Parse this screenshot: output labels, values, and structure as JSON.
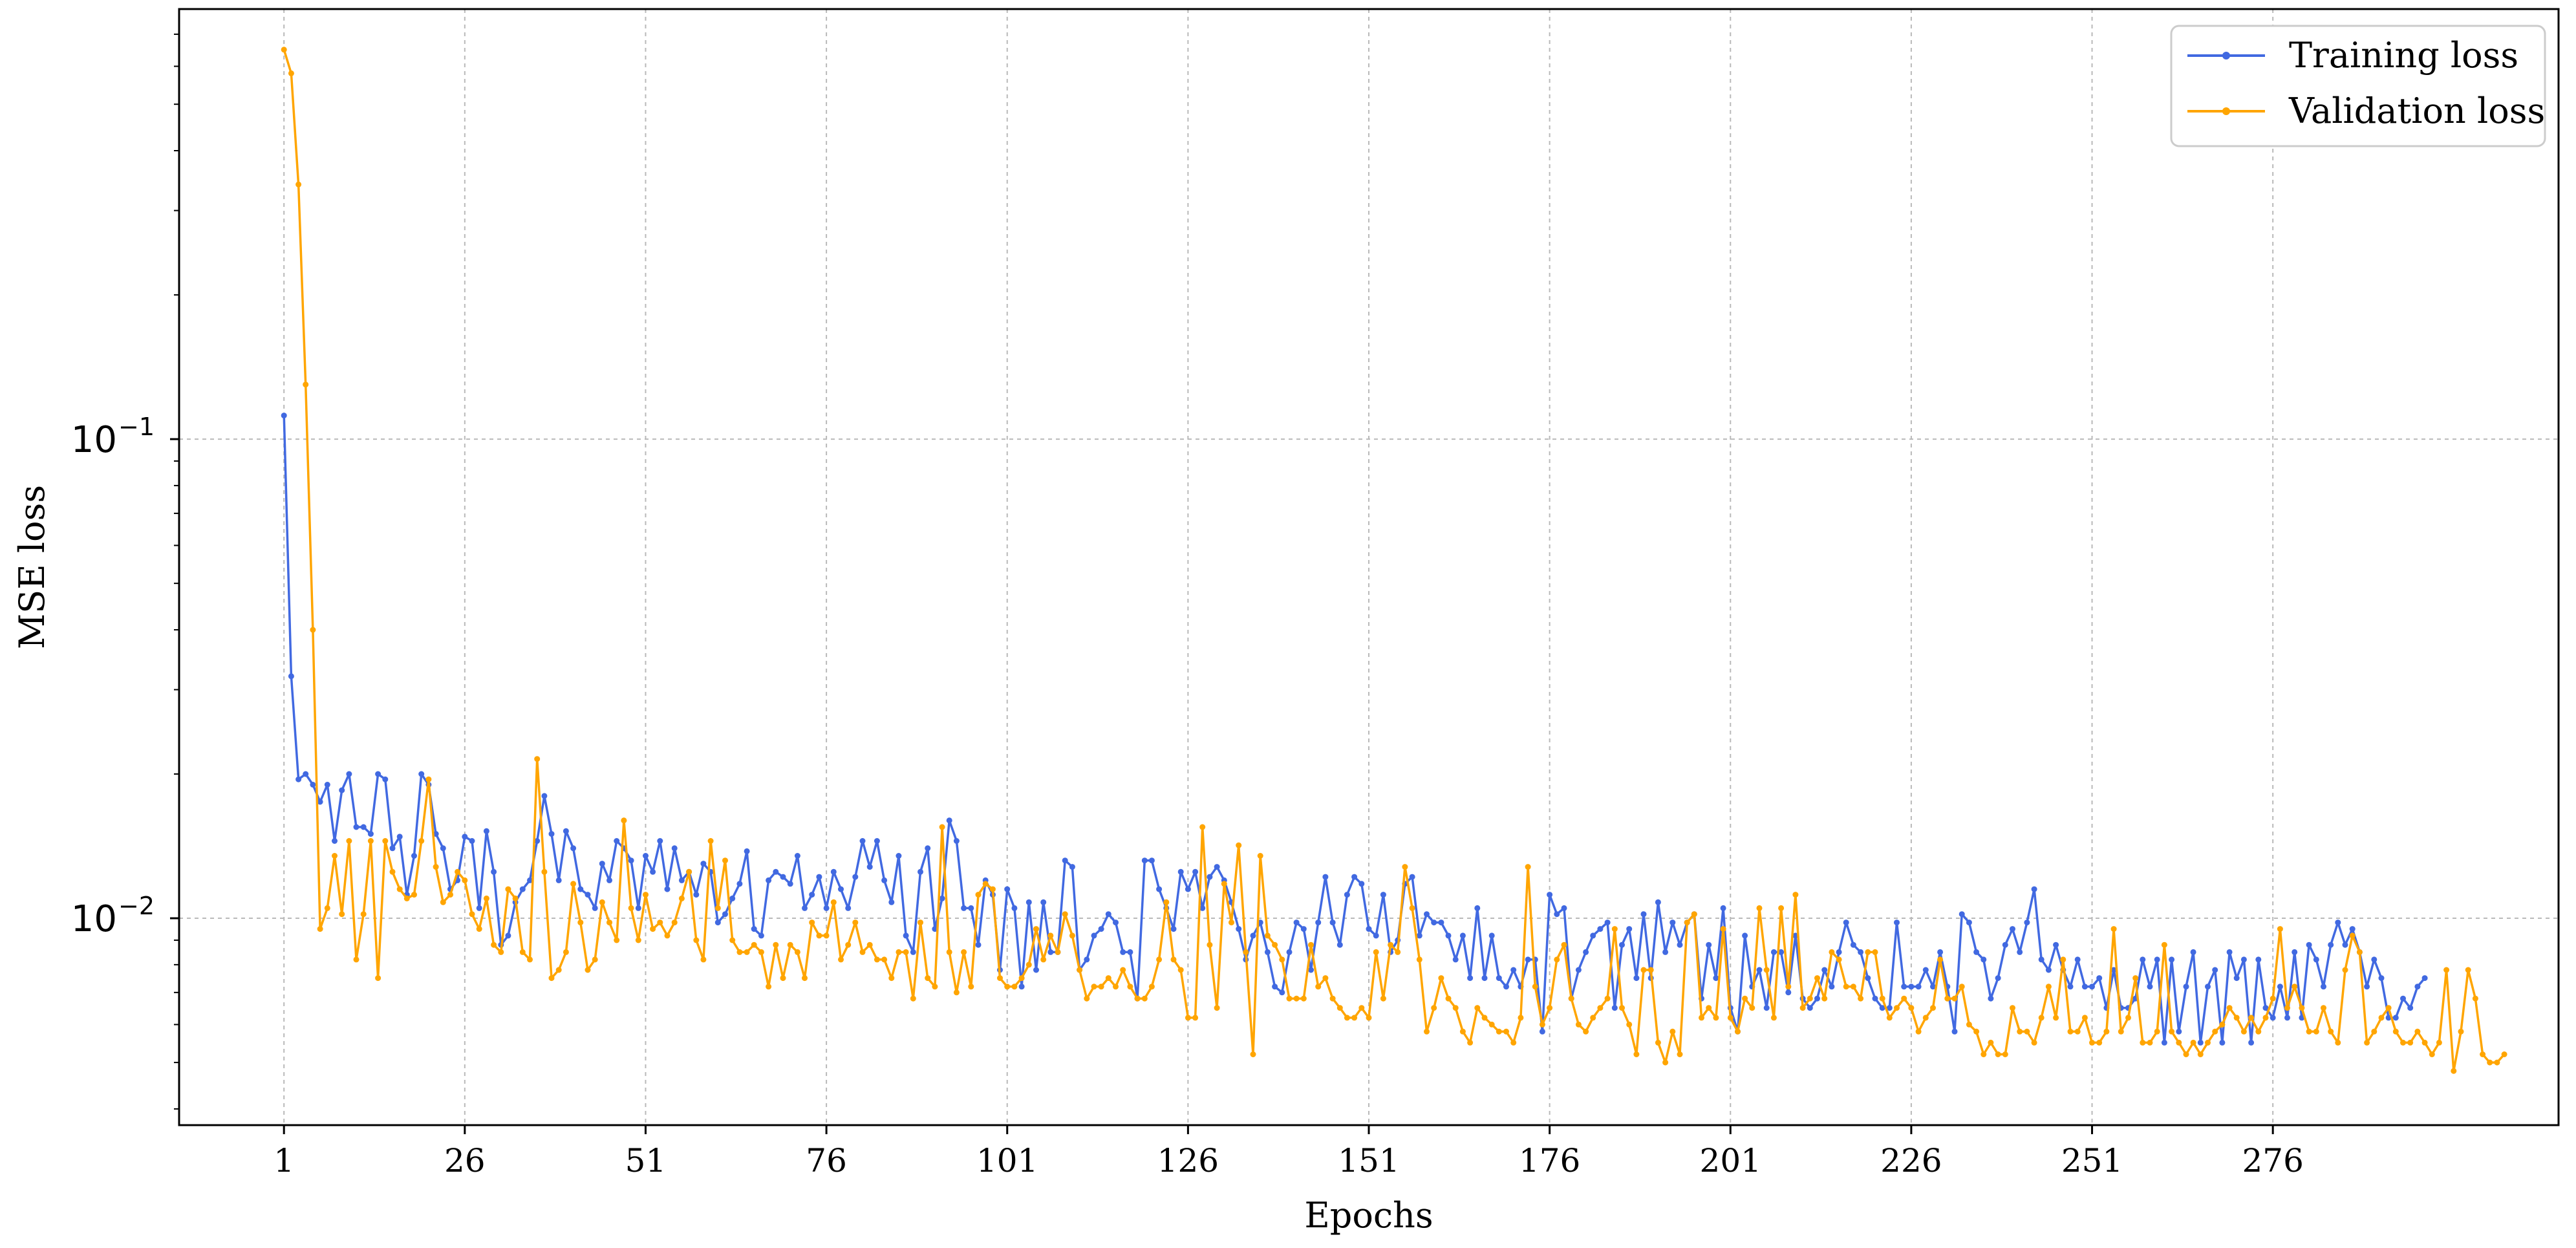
{
  "chart_data": {
    "type": "line",
    "title": "",
    "xlabel": "Epochs",
    "ylabel": "MSE loss",
    "yscale": "log",
    "xlim": [
      -13.5,
      315.5
    ],
    "ylim": [
      0.0037,
      0.79
    ],
    "xticks": [
      1,
      26,
      51,
      76,
      101,
      126,
      151,
      176,
      201,
      226,
      251,
      276
    ],
    "xtick_labels": [
      "1",
      "26",
      "51",
      "76",
      "101",
      "126",
      "151",
      "176",
      "201",
      "226",
      "251",
      "276"
    ],
    "yticks": [
      0.1,
      0.01
    ],
    "ytick_labels": [
      {
        "base": "10",
        "exp": "−1"
      },
      {
        "base": "10",
        "exp": "−2"
      }
    ],
    "grid": true,
    "legend_position": "top-right",
    "x_start": 1,
    "series": [
      {
        "name": "Training loss",
        "color": "#4169e1",
        "values": [
          0.112,
          0.032,
          0.0195,
          0.02,
          0.019,
          0.0175,
          0.019,
          0.0145,
          0.0185,
          0.02,
          0.0155,
          0.0155,
          0.015,
          0.02,
          0.0195,
          0.014,
          0.0148,
          0.0112,
          0.0135,
          0.02,
          0.019,
          0.015,
          0.014,
          0.0115,
          0.012,
          0.0148,
          0.0145,
          0.0105,
          0.0152,
          0.0125,
          0.0088,
          0.0092,
          0.0108,
          0.0115,
          0.012,
          0.0145,
          0.018,
          0.015,
          0.012,
          0.0152,
          0.014,
          0.0115,
          0.0112,
          0.0105,
          0.013,
          0.012,
          0.0145,
          0.014,
          0.0132,
          0.0105,
          0.0135,
          0.0125,
          0.0145,
          0.0115,
          0.014,
          0.012,
          0.0125,
          0.0112,
          0.013,
          0.0125,
          0.0098,
          0.0102,
          0.011,
          0.0118,
          0.0138,
          0.0095,
          0.0092,
          0.012,
          0.0125,
          0.0122,
          0.0118,
          0.0135,
          0.0105,
          0.0112,
          0.0122,
          0.0105,
          0.0125,
          0.0115,
          0.0105,
          0.0122,
          0.0145,
          0.0128,
          0.0145,
          0.012,
          0.0108,
          0.0135,
          0.0092,
          0.0085,
          0.0125,
          0.014,
          0.0095,
          0.011,
          0.016,
          0.0145,
          0.0105,
          0.0105,
          0.0088,
          0.012,
          0.0112,
          0.0078,
          0.0115,
          0.0105,
          0.0072,
          0.0108,
          0.0078,
          0.0108,
          0.0085,
          0.0085,
          0.0132,
          0.0128,
          0.0078,
          0.0082,
          0.0092,
          0.0095,
          0.0102,
          0.0098,
          0.0085,
          0.0085,
          0.0068,
          0.0132,
          0.0132,
          0.0115,
          0.0105,
          0.0095,
          0.0125,
          0.0115,
          0.0125,
          0.0105,
          0.0122,
          0.0128,
          0.012,
          0.0108,
          0.0095,
          0.0082,
          0.0092,
          0.0098,
          0.0085,
          0.0072,
          0.007,
          0.0085,
          0.0098,
          0.0095,
          0.0078,
          0.0098,
          0.0122,
          0.0098,
          0.0088,
          0.0112,
          0.0122,
          0.0118,
          0.0095,
          0.0092,
          0.0112,
          0.0085,
          0.009,
          0.0118,
          0.0122,
          0.0092,
          0.0102,
          0.0098,
          0.0098,
          0.0092,
          0.0082,
          0.0092,
          0.0075,
          0.0105,
          0.0075,
          0.0092,
          0.0075,
          0.0072,
          0.0078,
          0.0072,
          0.0082,
          0.0082,
          0.0058,
          0.0112,
          0.0102,
          0.0105,
          0.0068,
          0.0078,
          0.0085,
          0.0092,
          0.0095,
          0.0098,
          0.0065,
          0.0088,
          0.0095,
          0.0075,
          0.0102,
          0.0075,
          0.0108,
          0.0085,
          0.0098,
          0.0088,
          0.0098,
          0.0102,
          0.0068,
          0.0088,
          0.0075,
          0.0105,
          0.0065,
          0.0058,
          0.0092,
          0.0072,
          0.0078,
          0.0065,
          0.0085,
          0.0085,
          0.007,
          0.0092,
          0.0068,
          0.0065,
          0.0068,
          0.0078,
          0.0072,
          0.0085,
          0.0098,
          0.0088,
          0.0085,
          0.0075,
          0.0068,
          0.0065,
          0.0065,
          0.0098,
          0.0072,
          0.0072,
          0.0072,
          0.0078,
          0.0072,
          0.0085,
          0.0072,
          0.0058,
          0.0102,
          0.0098,
          0.0085,
          0.0082,
          0.0068,
          0.0075,
          0.0088,
          0.0095,
          0.0085,
          0.0098,
          0.0115,
          0.0082,
          0.0078,
          0.0088,
          0.0078,
          0.0072,
          0.0082,
          0.0072,
          0.0072,
          0.0075,
          0.0065,
          0.0078,
          0.0065,
          0.0065,
          0.0068,
          0.0082,
          0.0072,
          0.0082,
          0.0055,
          0.0082,
          0.0058,
          0.0072,
          0.0085,
          0.0055,
          0.0072,
          0.0078,
          0.0055,
          0.0085,
          0.0075,
          0.0082,
          0.0055,
          0.0082,
          0.0065,
          0.0062,
          0.0072,
          0.0062,
          0.0085,
          0.0062,
          0.0088,
          0.0082,
          0.0072,
          0.0088,
          0.0098,
          0.0088,
          0.0095,
          0.0085,
          0.0072,
          0.0082,
          0.0075,
          0.0062,
          0.0062,
          0.0068,
          0.0065,
          0.0072,
          0.0075
        ]
      },
      {
        "name": "Validation loss",
        "color": "#ffa500",
        "values": [
          0.65,
          0.58,
          0.34,
          0.13,
          0.04,
          0.0095,
          0.0105,
          0.0135,
          0.0102,
          0.0145,
          0.0082,
          0.0102,
          0.0145,
          0.0075,
          0.0145,
          0.0125,
          0.0115,
          0.011,
          0.0112,
          0.0145,
          0.0195,
          0.0128,
          0.0108,
          0.0112,
          0.0125,
          0.012,
          0.0102,
          0.0095,
          0.011,
          0.0088,
          0.0085,
          0.0115,
          0.011,
          0.0085,
          0.0082,
          0.0215,
          0.0125,
          0.0075,
          0.0078,
          0.0085,
          0.0118,
          0.0098,
          0.0078,
          0.0082,
          0.0108,
          0.0098,
          0.009,
          0.016,
          0.0105,
          0.009,
          0.0112,
          0.0095,
          0.0098,
          0.0092,
          0.0098,
          0.011,
          0.0125,
          0.009,
          0.0082,
          0.0145,
          0.0105,
          0.0132,
          0.009,
          0.0085,
          0.0085,
          0.0088,
          0.0085,
          0.0072,
          0.0088,
          0.0075,
          0.0088,
          0.0085,
          0.0075,
          0.0098,
          0.0092,
          0.0092,
          0.0108,
          0.0082,
          0.0088,
          0.0098,
          0.0085,
          0.0088,
          0.0082,
          0.0082,
          0.0075,
          0.0085,
          0.0085,
          0.0068,
          0.0098,
          0.0075,
          0.0072,
          0.0155,
          0.0085,
          0.007,
          0.0085,
          0.0072,
          0.0112,
          0.0118,
          0.0115,
          0.0075,
          0.0072,
          0.0072,
          0.0075,
          0.008,
          0.0095,
          0.0082,
          0.0092,
          0.0085,
          0.0102,
          0.0092,
          0.0078,
          0.0068,
          0.0072,
          0.0072,
          0.0075,
          0.0072,
          0.0078,
          0.0072,
          0.0068,
          0.0068,
          0.0072,
          0.0082,
          0.0108,
          0.0082,
          0.0078,
          0.0062,
          0.0062,
          0.0155,
          0.0088,
          0.0065,
          0.0118,
          0.0098,
          0.0142,
          0.0085,
          0.0052,
          0.0135,
          0.0092,
          0.0088,
          0.0082,
          0.0068,
          0.0068,
          0.0068,
          0.0088,
          0.0072,
          0.0075,
          0.0068,
          0.0065,
          0.0062,
          0.0062,
          0.0065,
          0.0062,
          0.0085,
          0.0068,
          0.0088,
          0.0085,
          0.0128,
          0.0105,
          0.0082,
          0.0058,
          0.0065,
          0.0075,
          0.0068,
          0.0065,
          0.0058,
          0.0055,
          0.0065,
          0.0062,
          0.006,
          0.0058,
          0.0058,
          0.0055,
          0.0062,
          0.0128,
          0.0072,
          0.006,
          0.0065,
          0.0082,
          0.0088,
          0.0068,
          0.006,
          0.0058,
          0.0062,
          0.0065,
          0.0068,
          0.0095,
          0.0065,
          0.006,
          0.0052,
          0.0078,
          0.0078,
          0.0055,
          0.005,
          0.0058,
          0.0052,
          0.0098,
          0.0102,
          0.0062,
          0.0065,
          0.0062,
          0.0095,
          0.0062,
          0.0058,
          0.0068,
          0.0065,
          0.0105,
          0.0078,
          0.0062,
          0.0105,
          0.0072,
          0.0112,
          0.0065,
          0.0068,
          0.0075,
          0.0068,
          0.0085,
          0.0082,
          0.0072,
          0.0072,
          0.0068,
          0.0085,
          0.0085,
          0.0068,
          0.0062,
          0.0065,
          0.0068,
          0.0065,
          0.0058,
          0.0062,
          0.0065,
          0.0082,
          0.0068,
          0.0068,
          0.0072,
          0.006,
          0.0058,
          0.0052,
          0.0055,
          0.0052,
          0.0052,
          0.0065,
          0.0058,
          0.0058,
          0.0055,
          0.0062,
          0.0072,
          0.0062,
          0.0082,
          0.0058,
          0.0058,
          0.0062,
          0.0055,
          0.0055,
          0.0058,
          0.0095,
          0.0058,
          0.0062,
          0.0075,
          0.0055,
          0.0055,
          0.0058,
          0.0088,
          0.0058,
          0.0055,
          0.0052,
          0.0055,
          0.0052,
          0.0055,
          0.0058,
          0.006,
          0.0065,
          0.0062,
          0.0058,
          0.0062,
          0.0058,
          0.0062,
          0.0068,
          0.0095,
          0.0065,
          0.0072,
          0.0065,
          0.0058,
          0.0058,
          0.0065,
          0.0058,
          0.0055,
          0.0078,
          0.0092,
          0.0085,
          0.0055,
          0.0058,
          0.0062,
          0.0065,
          0.0058,
          0.0055,
          0.0055,
          0.0058,
          0.0055,
          0.0052,
          0.0055,
          0.0078,
          0.0048,
          0.0058,
          0.0078,
          0.0068,
          0.0052,
          0.005,
          0.005,
          0.0052
        ]
      }
    ]
  }
}
